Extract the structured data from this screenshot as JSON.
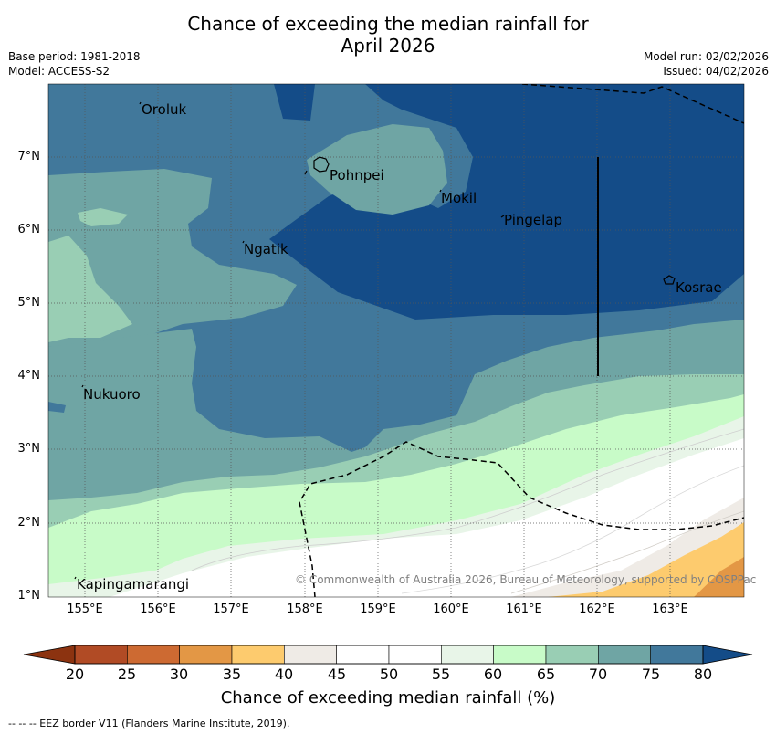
{
  "header": {
    "title_line1": "Chance of exceeding the median rainfall for",
    "title_line2": "April 2026",
    "base_period": "Base period: 1981-2018",
    "model": "Model: ACCESS-S2",
    "model_run": "Model run: 02/02/2026",
    "issued": "Issued: 04/02/2026"
  },
  "map": {
    "lat_labels": [
      "7°N",
      "6°N",
      "5°N",
      "4°N",
      "3°N",
      "2°N",
      "1°N"
    ],
    "lon_labels": [
      "155°E",
      "156°E",
      "157°E",
      "158°E",
      "159°E",
      "160°E",
      "161°E",
      "162°E",
      "163°E"
    ],
    "places": [
      "Oroluk",
      "Pohnpei",
      "Mokil",
      "Pingelap",
      "Ngatik",
      "Kosrae",
      "Nukuoro",
      "Kapingamarangi"
    ],
    "copyright": "© Commonwealth of Australia 2026, Bureau of Meteorology, supported by COSPPac"
  },
  "colorbar": {
    "ticks": [
      "20",
      "25",
      "30",
      "35",
      "40",
      "45",
      "50",
      "55",
      "60",
      "65",
      "70",
      "75",
      "80"
    ],
    "colors": [
      "#8c3310",
      "#b14b25",
      "#cd6a32",
      "#e39745",
      "#fdcb6e",
      "#efebe6",
      "#ffffff",
      "#ffffff",
      "#e8f5e8",
      "#c8fbc8",
      "#99ceb4",
      "#6fa5a4",
      "#41789b",
      "#144c88"
    ],
    "label": "Chance of exceeding median rainfall (%)"
  },
  "footnote": "--  --  -- EEZ border V11 (Flanders Marine Institute, 2019)."
}
